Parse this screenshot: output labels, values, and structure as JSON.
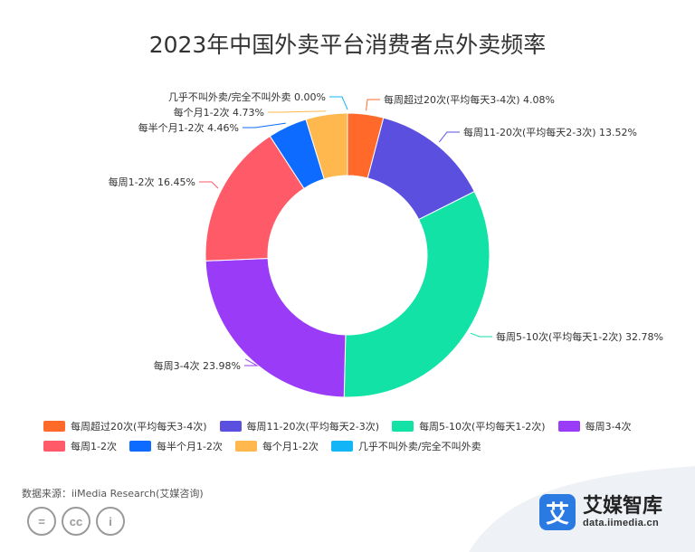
{
  "chart_data": {
    "type": "pie",
    "title": "2023年中国外卖平台消费者点外卖频率",
    "series": [
      {
        "name": "每周超过20次(平均每天3-4次)",
        "value": 4.08,
        "label": "4.08%",
        "color": "#ff6a2a"
      },
      {
        "name": "每周11-20次(平均每天2-3次)",
        "value": 13.52,
        "label": "13.52%",
        "color": "#5b4fe0"
      },
      {
        "name": "每周5-10次(平均每天1-2次)",
        "value": 32.78,
        "label": "32.78%",
        "color": "#12e2a6"
      },
      {
        "name": "每周3-4次",
        "value": 23.98,
        "label": "23.98%",
        "color": "#9a3cf7"
      },
      {
        "name": "每周1-2次",
        "value": 16.45,
        "label": "16.45%",
        "color": "#ff5a68"
      },
      {
        "name": "每半个月1-2次",
        "value": 4.46,
        "label": "4.46%",
        "color": "#0d6cff"
      },
      {
        "name": "每个月1-2次",
        "value": 4.73,
        "label": "4.73%",
        "color": "#ffb84d"
      },
      {
        "name": "几乎不叫外卖/完全不叫外卖",
        "value": 0.0,
        "label": "0.00%",
        "color": "#13b5f7"
      }
    ],
    "legend_position": "bottom"
  },
  "source": "数据来源：iiMedia Research(艾媒咨询)",
  "brand": {
    "logo_char": "艾",
    "name": "艾媒智库",
    "url": "data.iimedia.cn",
    "color": "#2a7ae2"
  },
  "license_icons": [
    {
      "name": "cc-nd-icon",
      "glyph": "="
    },
    {
      "name": "cc-icon",
      "glyph": "cc"
    },
    {
      "name": "cc-by-icon",
      "glyph": "i"
    }
  ]
}
